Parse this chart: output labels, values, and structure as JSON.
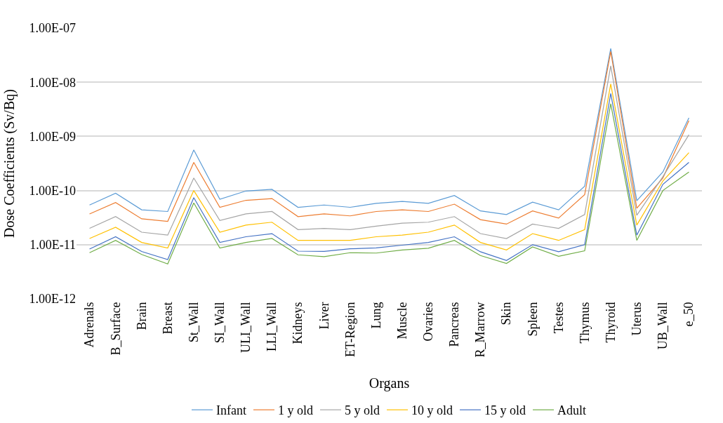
{
  "chart_data": {
    "type": "line",
    "xlabel": "Organs",
    "ylabel": "Dose Coefficients (Sv/Bq)",
    "categories": [
      "Adrenals",
      "B_Surface",
      "Brain",
      "Breast",
      "St_Wall",
      "SI_Wall",
      "ULI_Wall",
      "LLI_Wall",
      "Kidneys",
      "Liver",
      "ET-Region",
      "Lung",
      "Muscle",
      "Ovaries",
      "Pancreas",
      "R_Marrow",
      "Skin",
      "Spleen",
      "Testes",
      "Thymus",
      "Thyroid",
      "Uterus",
      "UB_Wall",
      "e_50"
    ],
    "series": [
      {
        "name": "Infant",
        "color": "#5b9bd5",
        "values": [
          5.4e-11,
          8.9e-11,
          4.4e-11,
          4.1e-11,
          5.6e-10,
          6.9e-11,
          9.8e-11,
          1.05e-10,
          4.9e-11,
          5.4e-11,
          4.9e-11,
          5.8e-11,
          6.3e-11,
          5.8e-11,
          8.1e-11,
          4.2e-11,
          3.6e-11,
          6.1e-11,
          4.4e-11,
          1.2e-10,
          4.2e-08,
          6.5e-11,
          2.2e-10,
          2.2e-09
        ]
      },
      {
        "name": "1 y old",
        "color": "#ed7d31",
        "values": [
          3.7e-11,
          6e-11,
          3e-11,
          2.7e-11,
          3.3e-10,
          4.9e-11,
          6.6e-11,
          7.1e-11,
          3.3e-11,
          3.7e-11,
          3.4e-11,
          4.1e-11,
          4.4e-11,
          4.1e-11,
          5.6e-11,
          2.9e-11,
          2.4e-11,
          4.2e-11,
          3.1e-11,
          8.4e-11,
          3.7e-08,
          4.7e-11,
          1.7e-10,
          1.95e-09
        ]
      },
      {
        "name": "5 y old",
        "color": "#a5a5a5",
        "values": [
          2e-11,
          3.3e-11,
          1.7e-11,
          1.5e-11,
          1.7e-10,
          2.8e-11,
          3.7e-11,
          4.1e-11,
          1.9e-11,
          2e-11,
          1.9e-11,
          2.2e-11,
          2.5e-11,
          2.6e-11,
          3.3e-11,
          1.6e-11,
          1.3e-11,
          2.4e-11,
          2e-11,
          3.6e-11,
          2e-08,
          3.5e-11,
          1.8e-10,
          1.07e-09
        ]
      },
      {
        "name": "10 y old",
        "color": "#ffc000",
        "values": [
          1.3e-11,
          2.1e-11,
          1.1e-11,
          8.7e-12,
          1e-10,
          1.7e-11,
          2.3e-11,
          2.6e-11,
          1.2e-11,
          1.2e-11,
          1.2e-11,
          1.4e-11,
          1.5e-11,
          1.7e-11,
          2.3e-11,
          1.1e-11,
          8e-12,
          1.6e-11,
          1.2e-11,
          1.9e-11,
          9.3e-09,
          2.3e-11,
          1.5e-10,
          5e-10
        ]
      },
      {
        "name": "15 y old",
        "color": "#4472c4",
        "values": [
          8.3e-12,
          1.4e-11,
          7.5e-12,
          5.3e-12,
          7.4e-11,
          1.1e-11,
          1.4e-11,
          1.6e-11,
          7.6e-12,
          7.5e-12,
          8.4e-12,
          8.7e-12,
          9.8e-12,
          1.1e-11,
          1.4e-11,
          7.4e-12,
          5.1e-12,
          1e-11,
          7.4e-12,
          1e-11,
          6.2e-09,
          1.5e-11,
          1.3e-10,
          3.3e-10
        ]
      },
      {
        "name": "Adult",
        "color": "#70ad47",
        "values": [
          7.1e-12,
          1.2e-11,
          6.6e-12,
          4.4e-12,
          5.9e-11,
          8.7e-12,
          1.1e-11,
          1.3e-11,
          6.5e-12,
          6e-12,
          7.1e-12,
          7e-12,
          8e-12,
          8.6e-12,
          1.2e-11,
          6.3e-12,
          4.5e-12,
          9.1e-12,
          6.1e-12,
          7.7e-12,
          4e-09,
          1.2e-11,
          1e-10,
          2.2e-10
        ]
      }
    ],
    "log": "y",
    "ylim": [
      1e-12,
      1e-07
    ],
    "yticks": [
      {
        "value": 1e-12,
        "label": "1.00E-12"
      },
      {
        "value": 1e-11,
        "label": "1.00E-11"
      },
      {
        "value": 1e-10,
        "label": "1.00E-10"
      },
      {
        "value": 1e-09,
        "label": "1.00E-09"
      },
      {
        "value": 1e-08,
        "label": "1.00E-08"
      },
      {
        "value": 1e-07,
        "label": "1.00E-07"
      }
    ],
    "grid": "y",
    "legend": "bottom",
    "marker": "none",
    "line_style": "solid"
  }
}
